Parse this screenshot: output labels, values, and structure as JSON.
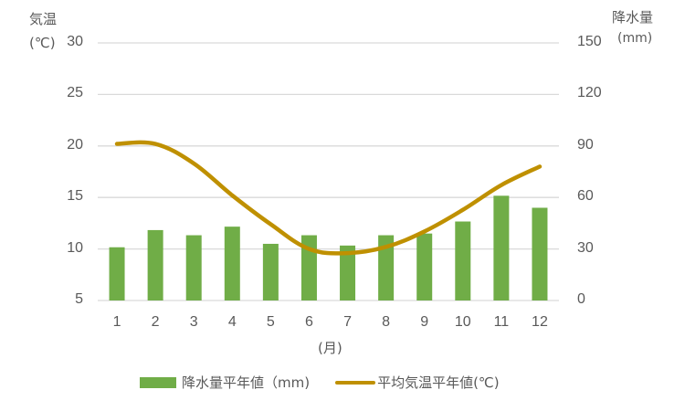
{
  "chart_data": {
    "type": "bar+line",
    "categories": [
      "1",
      "2",
      "3",
      "4",
      "5",
      "6",
      "7",
      "8",
      "9",
      "10",
      "11",
      "12"
    ],
    "series": [
      {
        "name": "降水量平年値（mm)",
        "type": "bar",
        "axis": "right",
        "values": [
          31,
          41,
          38,
          43,
          33,
          38,
          32,
          38,
          39,
          46,
          61,
          54
        ],
        "color": "#70AD47"
      },
      {
        "name": "平均気温平年値(℃)",
        "type": "line",
        "axis": "left",
        "values": [
          20.2,
          20.2,
          18.3,
          15.2,
          12.4,
          10.0,
          9.6,
          10.2,
          11.7,
          13.8,
          16.2,
          18.0
        ],
        "color": "#BF9000"
      }
    ],
    "xlabel": "(月)",
    "ylabel_left": "気温 (℃)",
    "ylabel_right": "降水量 (mm)",
    "ylim_left": [
      5,
      30
    ],
    "ylim_right": [
      0,
      150
    ],
    "yticks_left": [
      30,
      25,
      20,
      15,
      10,
      5
    ],
    "yticks_right": [
      150,
      120,
      90,
      60,
      30,
      0
    ],
    "grid": true,
    "legend_position": "bottom"
  },
  "axis": {
    "left_title_line1": "気温",
    "left_title_line2": "(℃)",
    "right_title_line1": "降水量",
    "right_title_line2": "(mm)",
    "x_title": "(月)"
  },
  "legend": {
    "bar_label": "降水量平年値（mm)",
    "line_label": "平均気温平年値(℃)"
  }
}
